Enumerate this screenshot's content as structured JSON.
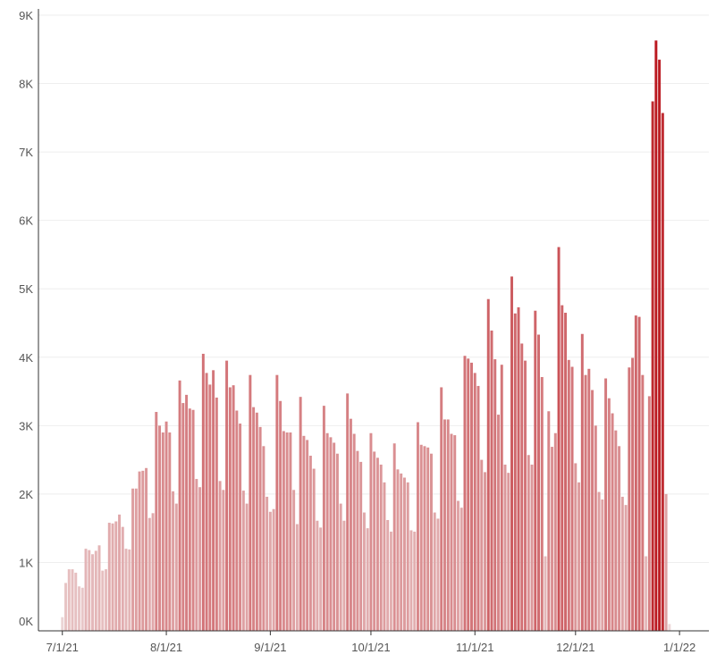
{
  "chart_data": {
    "type": "bar",
    "x_start": "2021-06-30",
    "y_tick_labels": [
      "0K",
      "1K",
      "2K",
      "3K",
      "4K",
      "5K",
      "6K",
      "7K",
      "8K",
      "9K"
    ],
    "y_tick_values": [
      0,
      1000,
      2000,
      3000,
      4000,
      5000,
      6000,
      7000,
      8000,
      9000
    ],
    "x_tick_labels": [
      "7/1/21",
      "8/1/21",
      "9/1/21",
      "10/1/21",
      "11/1/21",
      "12/1/21",
      "1/1/22"
    ],
    "x_tick_dates": [
      "2021-07-01",
      "2021-08-01",
      "2021-09-01",
      "2021-10-01",
      "2021-11-01",
      "2021-12-01",
      "2022-01-01"
    ],
    "ylim": [
      0,
      9000
    ],
    "values": [
      0,
      200,
      700,
      900,
      900,
      850,
      650,
      630,
      1200,
      1180,
      1120,
      1170,
      1250,
      880,
      900,
      1580,
      1570,
      1600,
      1700,
      1520,
      1200,
      1190,
      2080,
      2080,
      2330,
      2340,
      2380,
      1650,
      1720,
      3200,
      3000,
      2900,
      3060,
      2900,
      2040,
      1860,
      3660,
      3330,
      3450,
      3250,
      3230,
      2220,
      2100,
      4050,
      3770,
      3600,
      3810,
      3410,
      2190,
      2060,
      3950,
      3560,
      3590,
      3220,
      3030,
      2050,
      1860,
      3740,
      3270,
      3190,
      2980,
      2700,
      1960,
      1740,
      1780,
      3740,
      3360,
      2920,
      2900,
      2900,
      2060,
      1560,
      3420,
      2850,
      2790,
      2560,
      2370,
      1610,
      1510,
      3290,
      2890,
      2830,
      2750,
      2590,
      1860,
      1610,
      3470,
      3100,
      2880,
      2630,
      2470,
      1730,
      1500,
      2890,
      2620,
      2530,
      2430,
      2170,
      1620,
      1450,
      2740,
      2360,
      2300,
      2240,
      2170,
      1470,
      1450,
      3050,
      2720,
      2700,
      2680,
      2590,
      1730,
      1640,
      3560,
      3090,
      3090,
      2880,
      2860,
      1900,
      1800,
      4020,
      3980,
      3920,
      3770,
      3580,
      2500,
      2320,
      4850,
      4390,
      3970,
      3160,
      3890,
      2430,
      2310,
      5180,
      4640,
      4730,
      4200,
      3950,
      2570,
      2430,
      4680,
      4330,
      3710,
      1090,
      3210,
      2690,
      2890,
      5610,
      4760,
      4650,
      3960,
      3860,
      2450,
      2170,
      4340,
      3740,
      3830,
      3520,
      3000,
      2030,
      1920,
      3690,
      3400,
      3180,
      2930,
      2700,
      1960,
      1840,
      3850,
      3990,
      4610,
      4590,
      3740,
      1090,
      3430,
      7740,
      8630,
      8350,
      7570,
      2000,
      100
    ]
  }
}
